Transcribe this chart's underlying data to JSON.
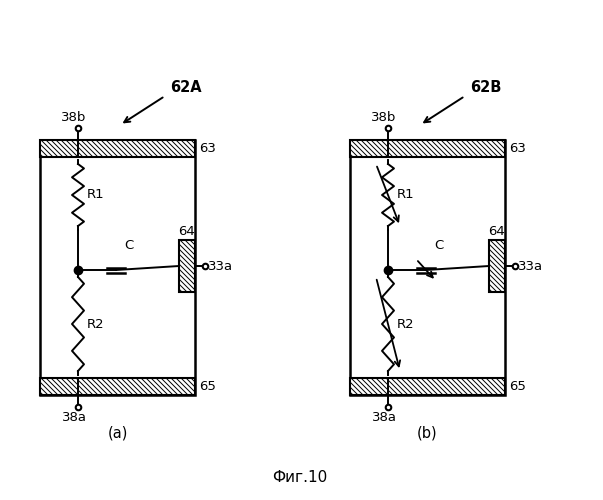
{
  "title": "Фиг.10",
  "bg_color": "#ffffff",
  "fig_label_a": "(a)",
  "fig_label_b": "(b)",
  "label_62A": "62A",
  "label_62B": "62B",
  "label_38b": "38b",
  "label_38a": "38a",
  "label_63": "63",
  "label_64": "64",
  "label_65": "65",
  "label_33a": "33a",
  "label_R1": "R1",
  "label_R2": "R2",
  "label_C": "C"
}
